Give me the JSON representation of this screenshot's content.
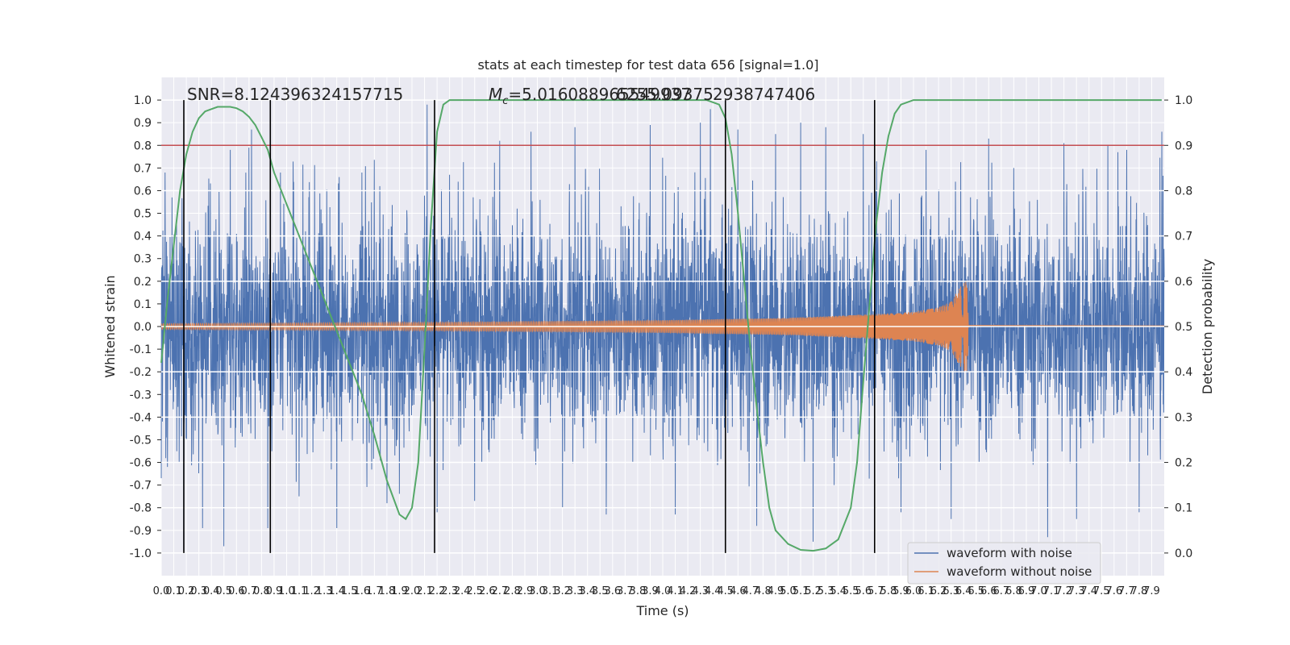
{
  "chart_data": {
    "type": "line",
    "title": "stats at each timestep for test data 656 [signal=1.0]",
    "xlabel": "Time (s)",
    "ylabel_left": "Whitened strain",
    "ylabel_right": "Detection probability",
    "xlim": [
      0.0,
      8.0
    ],
    "ylim_left": [
      -1.1,
      1.1
    ],
    "ylim_right": [
      -0.05,
      1.05
    ],
    "x_tick_step": 0.1,
    "y_left_ticks": [
      -1.0,
      -0.9,
      -0.8,
      -0.7,
      -0.6,
      -0.5,
      -0.4,
      -0.3,
      -0.2,
      -0.1,
      0.0,
      0.1,
      0.2,
      0.3,
      0.4,
      0.5,
      0.6,
      0.7,
      0.8,
      0.9,
      1.0
    ],
    "y_right_ticks": [
      0.0,
      0.1,
      0.2,
      0.3,
      0.4,
      0.5,
      0.6,
      0.7,
      0.8,
      0.9,
      1.0
    ],
    "grid": true,
    "legend_position": "lower-right",
    "annotations": {
      "snr": "SNR=8.124396324157715",
      "mc_prefix": "M",
      "mc_sub": "c",
      "mc_value": "=5.016088965549937",
      "overlap_value": "6255.09375",
      "trailing_value": "2938747406"
    },
    "threshold": {
      "axis": "right",
      "y": 0.9,
      "color": "#c44e52"
    },
    "event_markers_x": [
      0.18,
      0.87,
      2.18,
      4.5,
      5.69
    ],
    "series": [
      {
        "name": "waveform with noise",
        "axis": "left",
        "color": "#4c72b0",
        "kind": "noise",
        "envelope": [
          [
            0.0,
            0.25
          ],
          [
            8.0,
            0.25
          ]
        ],
        "peaks": [
          [
            0.03,
            0.68
          ],
          [
            0.05,
            -0.62
          ],
          [
            0.18,
            -0.99
          ],
          [
            0.33,
            -0.89
          ],
          [
            0.5,
            -0.97
          ],
          [
            0.55,
            0.78
          ],
          [
            0.7,
            0.79
          ],
          [
            0.72,
            0.87
          ],
          [
            0.85,
            -0.89
          ],
          [
            0.95,
            0.68
          ],
          [
            1.1,
            -0.75
          ],
          [
            1.4,
            -0.89
          ],
          [
            1.42,
            0.66
          ],
          [
            1.6,
            0.68
          ],
          [
            1.8,
            -0.78
          ],
          [
            2.12,
            0.98
          ],
          [
            2.2,
            -0.82
          ],
          [
            2.3,
            0.67
          ],
          [
            2.5,
            -0.77
          ],
          [
            2.7,
            0.82
          ],
          [
            2.95,
            0.86
          ],
          [
            3.2,
            -0.8
          ],
          [
            3.3,
            0.88
          ],
          [
            3.55,
            -0.83
          ],
          [
            3.9,
            0.89
          ],
          [
            4.1,
            -0.83
          ],
          [
            4.3,
            0.9
          ],
          [
            4.38,
            0.96
          ],
          [
            4.6,
            0.87
          ],
          [
            4.75,
            -0.88
          ],
          [
            4.9,
            0.85
          ],
          [
            5.1,
            0.9
          ],
          [
            5.2,
            -0.95
          ],
          [
            5.3,
            0.88
          ],
          [
            5.6,
            0.85
          ],
          [
            5.7,
            0.6
          ],
          [
            5.9,
            -0.82
          ],
          [
            6.1,
            0.78
          ],
          [
            6.3,
            -0.85
          ],
          [
            6.6,
            0.83
          ],
          [
            6.8,
            0.7
          ],
          [
            7.07,
            -0.93
          ],
          [
            7.2,
            0.81
          ],
          [
            7.3,
            -0.85
          ],
          [
            7.55,
            0.8
          ],
          [
            7.63,
            0.77
          ],
          [
            7.7,
            0.78
          ],
          [
            7.8,
            -0.82
          ],
          [
            7.98,
            0.86
          ]
        ]
      },
      {
        "name": "waveform without noise",
        "axis": "left",
        "color": "#dd8452",
        "kind": "chirp",
        "amplitude": [
          [
            0.0,
            0.013
          ],
          [
            2.0,
            0.018
          ],
          [
            4.0,
            0.028
          ],
          [
            5.0,
            0.038
          ],
          [
            5.7,
            0.055
          ],
          [
            6.0,
            0.065
          ],
          [
            6.2,
            0.085
          ],
          [
            6.3,
            0.11
          ],
          [
            6.4,
            0.2
          ],
          [
            6.43,
            0.2
          ],
          [
            6.44,
            0.005
          ],
          [
            8.0,
            0.003
          ]
        ],
        "end_x": 6.44
      },
      {
        "name": "detection probability",
        "axis": "right",
        "color": "#55a868",
        "kind": "line",
        "x": [
          0.0,
          0.05,
          0.1,
          0.15,
          0.2,
          0.25,
          0.3,
          0.35,
          0.4,
          0.45,
          0.5,
          0.55,
          0.6,
          0.65,
          0.7,
          0.75,
          0.8,
          0.85,
          0.9,
          1.0,
          1.1,
          1.2,
          1.3,
          1.4,
          1.5,
          1.6,
          1.7,
          1.8,
          1.9,
          1.95,
          2.0,
          2.05,
          2.1,
          2.15,
          2.2,
          2.25,
          2.3,
          2.4,
          2.6,
          3.0,
          3.5,
          4.0,
          4.35,
          4.45,
          4.5,
          4.55,
          4.6,
          4.65,
          4.7,
          4.75,
          4.8,
          4.85,
          4.9,
          5.0,
          5.1,
          5.2,
          5.3,
          5.4,
          5.5,
          5.55,
          5.6,
          5.65,
          5.7,
          5.75,
          5.8,
          5.85,
          5.9,
          6.0,
          6.5,
          7.0,
          7.5,
          7.98
        ],
        "y": [
          0.42,
          0.56,
          0.68,
          0.8,
          0.88,
          0.93,
          0.96,
          0.975,
          0.98,
          0.985,
          0.985,
          0.985,
          0.982,
          0.975,
          0.963,
          0.945,
          0.918,
          0.89,
          0.84,
          0.77,
          0.7,
          0.63,
          0.56,
          0.49,
          0.42,
          0.35,
          0.26,
          0.16,
          0.085,
          0.075,
          0.1,
          0.2,
          0.45,
          0.72,
          0.93,
          0.99,
          1.0,
          1.0,
          1.0,
          1.0,
          1.0,
          1.0,
          1.0,
          0.99,
          0.96,
          0.88,
          0.75,
          0.6,
          0.45,
          0.32,
          0.2,
          0.1,
          0.05,
          0.02,
          0.007,
          0.005,
          0.01,
          0.03,
          0.1,
          0.2,
          0.38,
          0.55,
          0.72,
          0.84,
          0.92,
          0.97,
          0.99,
          1.0,
          1.0,
          1.0,
          1.0,
          1.0
        ]
      }
    ]
  }
}
